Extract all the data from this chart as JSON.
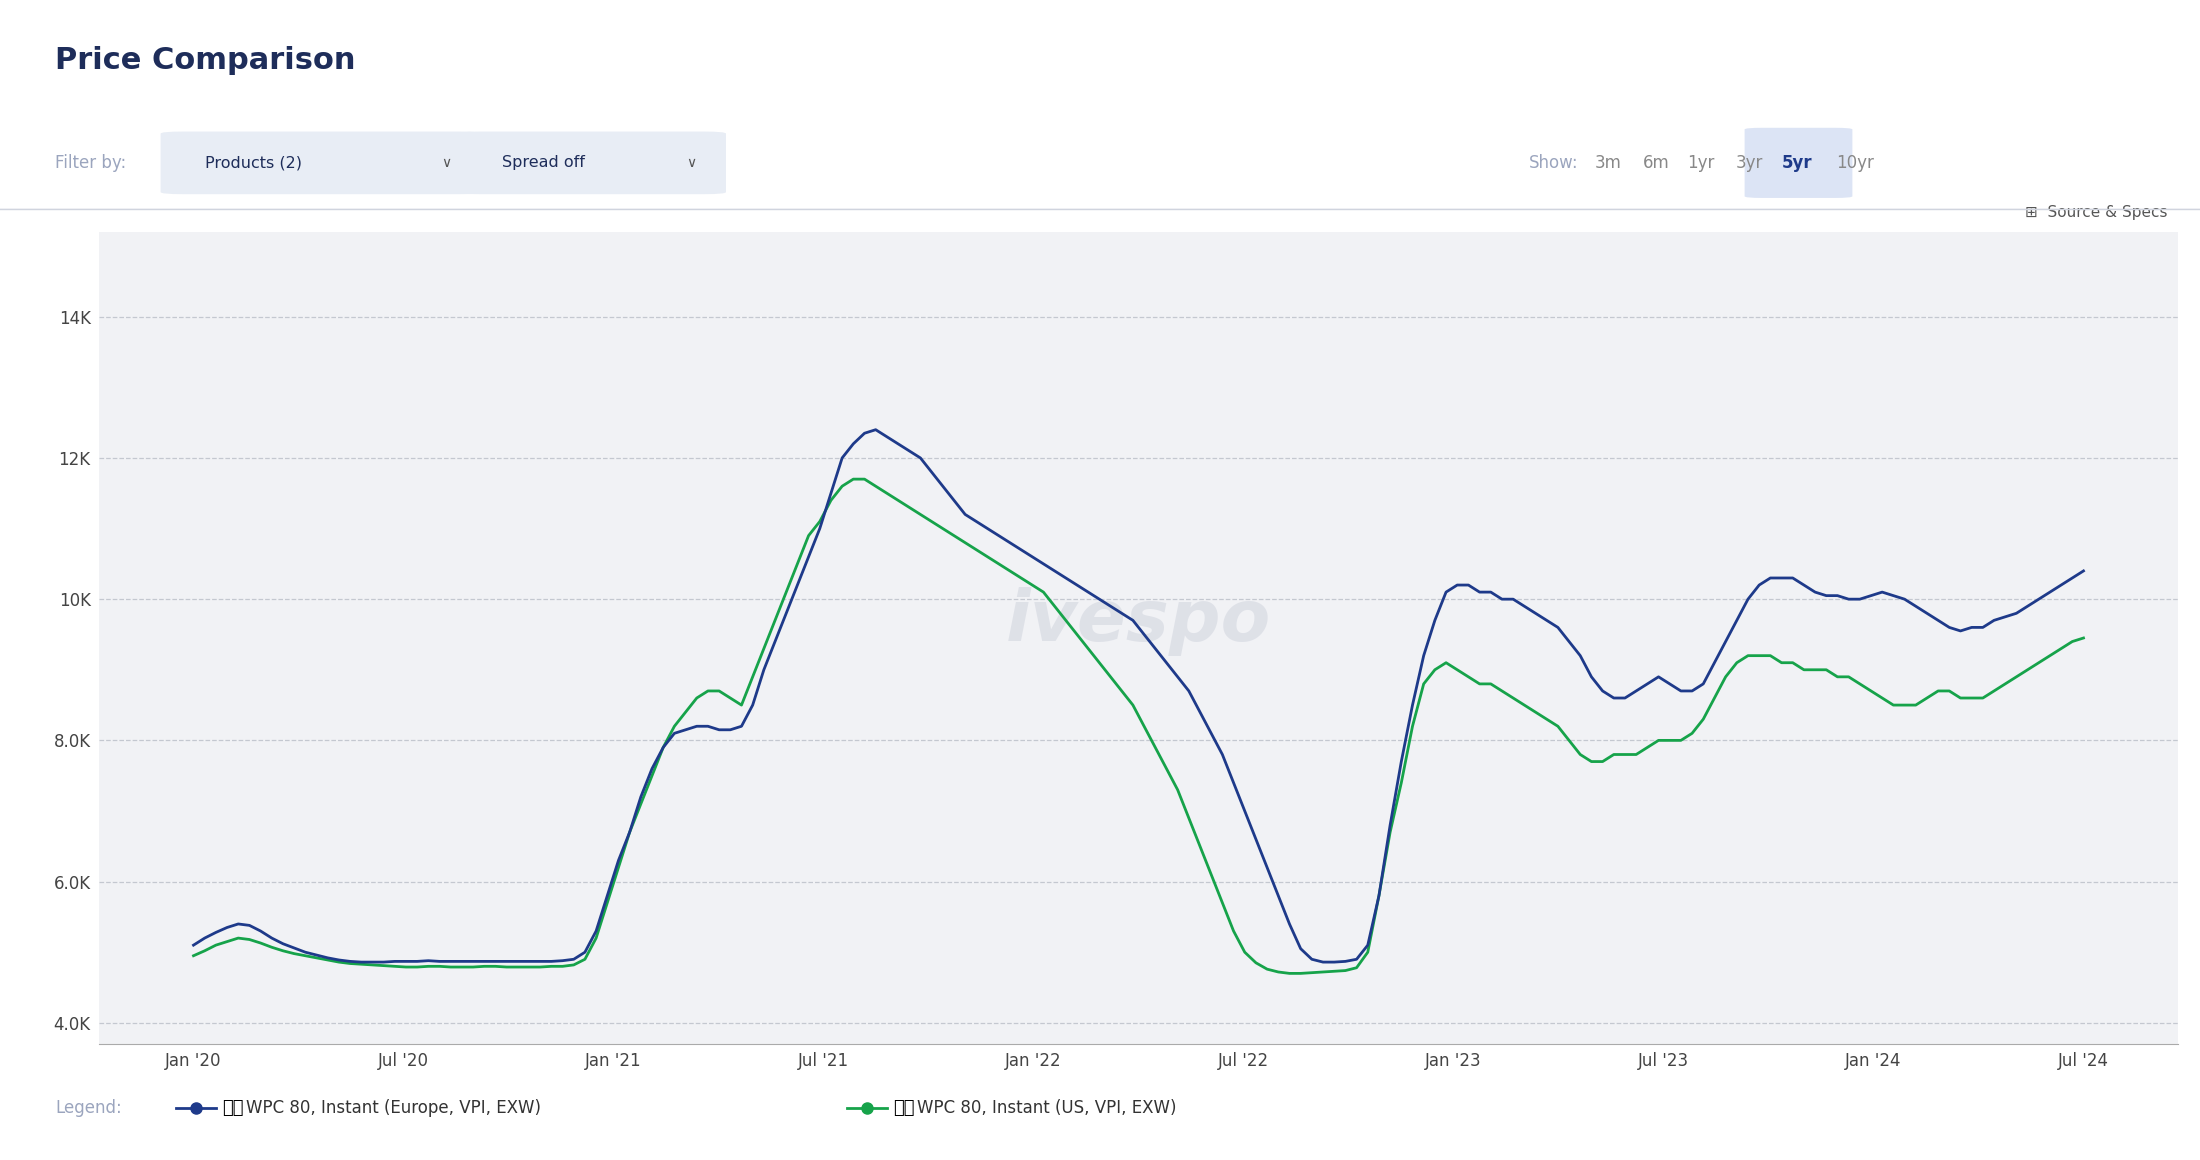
{
  "title": "Price Comparison",
  "filter_label": "Filter by:",
  "filter_products": "Products (2)",
  "filter_spread": "Spread off",
  "show_label": "Show:",
  "show_options": [
    "3m",
    "6m",
    "1yr",
    "3yr",
    "5yr",
    "10yr"
  ],
  "show_active": "5yr",
  "source_label": "Source & Specs",
  "bg_color": "#f5f6f8",
  "header_bg": "#ffffff",
  "chart_bg": "#f1f2f5",
  "grid_color": "#c8ccd4",
  "ytick_labels": [
    "4.0K",
    "6.0K",
    "8.0K",
    "10K",
    "12K",
    "14K"
  ],
  "ytick_values": [
    4000,
    6000,
    8000,
    10000,
    12000,
    14000
  ],
  "ylim": [
    3700,
    15200
  ],
  "xtick_labels": [
    "Jan '20",
    "Jul '20",
    "Jan '21",
    "Jul '21",
    "Jan '22",
    "Jul '22",
    "Jan '23",
    "Jul '23",
    "Jan '24",
    "Jul '24"
  ],
  "watermark": "ivespo",
  "legend_eu_label": "WPC 80, Instant (Europe, VPI, EXW)",
  "legend_us_label": "WPC 80, Instant (US, VPI, EXW)",
  "line_eu_color": "#1e3a8a",
  "line_us_color": "#16a34a",
  "europe_data": [
    5100,
    5200,
    5280,
    5350,
    5400,
    5380,
    5300,
    5200,
    5120,
    5060,
    5000,
    4960,
    4920,
    4890,
    4870,
    4860,
    4860,
    4860,
    4870,
    4870,
    4870,
    4880,
    4870,
    4870,
    4870,
    4870,
    4870,
    4870,
    4870,
    4870,
    4870,
    4870,
    4870,
    4880,
    4900,
    5000,
    5300,
    5800,
    6300,
    6700,
    7200,
    7600,
    7900,
    8100,
    8150,
    8200,
    8200,
    8150,
    8150,
    8200,
    8500,
    9000,
    9400,
    9800,
    10200,
    10600,
    11000,
    11500,
    12000,
    12200,
    12350,
    12400,
    12300,
    12200,
    12100,
    12000,
    11800,
    11600,
    11400,
    11200,
    11100,
    11000,
    10900,
    10800,
    10700,
    10600,
    10500,
    10400,
    10300,
    10200,
    10100,
    10000,
    9900,
    9800,
    9700,
    9500,
    9300,
    9100,
    8900,
    8700,
    8400,
    8100,
    7800,
    7400,
    7000,
    6600,
    6200,
    5800,
    5400,
    5050,
    4900,
    4860,
    4860,
    4870,
    4900,
    5100,
    5800,
    6800,
    7700,
    8500,
    9200,
    9700,
    10100,
    10200,
    10200,
    10100,
    10100,
    10000,
    10000,
    9900,
    9800,
    9700,
    9600,
    9400,
    9200,
    8900,
    8700,
    8600,
    8600,
    8700,
    8800,
    8900,
    8800,
    8700,
    8700,
    8800,
    9100,
    9400,
    9700,
    10000,
    10200,
    10300,
    10300,
    10300,
    10200,
    10100,
    10050,
    10050,
    10000,
    10000,
    10050,
    10100,
    10050,
    10000,
    9900,
    9800,
    9700,
    9600,
    9550,
    9600,
    9600,
    9700,
    9750,
    9800,
    9900,
    10000,
    10100,
    10200,
    10300,
    10400
  ],
  "us_data": [
    4950,
    5020,
    5100,
    5150,
    5200,
    5180,
    5130,
    5070,
    5020,
    4980,
    4950,
    4920,
    4890,
    4860,
    4840,
    4830,
    4820,
    4810,
    4800,
    4790,
    4790,
    4800,
    4800,
    4790,
    4790,
    4790,
    4800,
    4800,
    4790,
    4790,
    4790,
    4790,
    4800,
    4800,
    4820,
    4900,
    5200,
    5700,
    6200,
    6700,
    7100,
    7500,
    7900,
    8200,
    8400,
    8600,
    8700,
    8700,
    8600,
    8500,
    8900,
    9300,
    9700,
    10100,
    10500,
    10900,
    11100,
    11400,
    11600,
    11700,
    11700,
    11600,
    11500,
    11400,
    11300,
    11200,
    11100,
    11000,
    10900,
    10800,
    10700,
    10600,
    10500,
    10400,
    10300,
    10200,
    10100,
    9900,
    9700,
    9500,
    9300,
    9100,
    8900,
    8700,
    8500,
    8200,
    7900,
    7600,
    7300,
    6900,
    6500,
    6100,
    5700,
    5300,
    5000,
    4850,
    4760,
    4720,
    4700,
    4700,
    4710,
    4720,
    4730,
    4740,
    4780,
    5000,
    5800,
    6700,
    7400,
    8200,
    8800,
    9000,
    9100,
    9000,
    8900,
    8800,
    8800,
    8700,
    8600,
    8500,
    8400,
    8300,
    8200,
    8000,
    7800,
    7700,
    7700,
    7800,
    7800,
    7800,
    7900,
    8000,
    8000,
    8000,
    8100,
    8300,
    8600,
    8900,
    9100,
    9200,
    9200,
    9200,
    9100,
    9100,
    9000,
    9000,
    9000,
    8900,
    8900,
    8800,
    8700,
    8600,
    8500,
    8500,
    8500,
    8600,
    8700,
    8700,
    8600,
    8600,
    8600,
    8700,
    8800,
    8900,
    9000,
    9100,
    9200,
    9300,
    9400,
    9450
  ]
}
